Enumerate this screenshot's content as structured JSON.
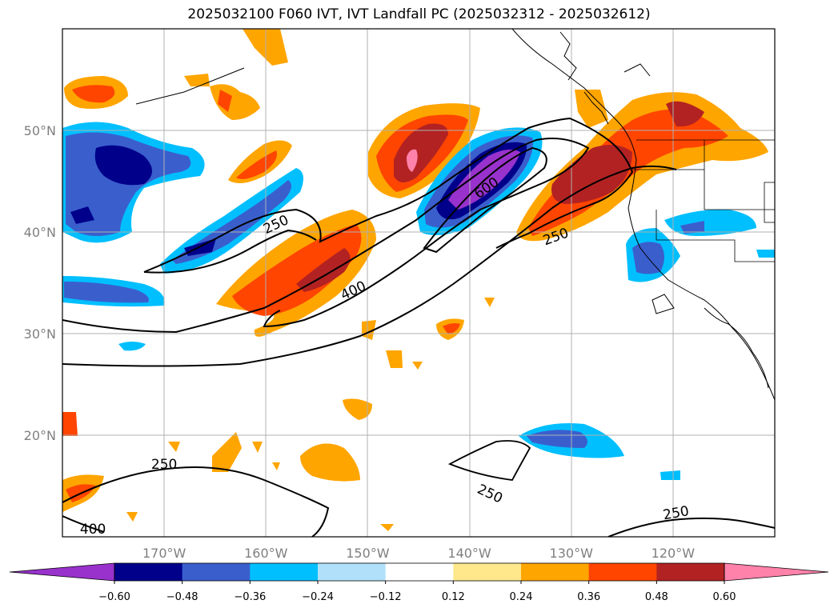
{
  "title": "2025032100 F060 IVT, IVT Landfall PC (2025032312 - 2025032612)",
  "map": {
    "lon_range": [
      180,
      110
    ],
    "lat_range": [
      10,
      60
    ],
    "lon_ticks": [
      {
        "value": 170,
        "label": "170°W"
      },
      {
        "value": 160,
        "label": "160°W"
      },
      {
        "value": 150,
        "label": "150°W"
      },
      {
        "value": 140,
        "label": "140°W"
      },
      {
        "value": 130,
        "label": "130°W"
      },
      {
        "value": 120,
        "label": "120°W"
      }
    ],
    "lat_ticks": [
      {
        "value": 20,
        "label": "20°N"
      },
      {
        "value": 30,
        "label": "30°N"
      },
      {
        "value": 40,
        "label": "40°N"
      },
      {
        "value": 50,
        "label": "50°N"
      }
    ],
    "grid": true,
    "contour_labels": [
      {
        "text": "250",
        "lon": 159,
        "lat": 40.7
      },
      {
        "text": "400",
        "lon": 151.4,
        "lat": 34.2
      },
      {
        "text": "600",
        "lon": 138.3,
        "lat": 44.3
      },
      {
        "text": "250",
        "lon": 131.5,
        "lat": 39.5
      },
      {
        "text": "250",
        "lon": 170,
        "lat": 17.1
      },
      {
        "text": "250",
        "lon": 138,
        "lat": 14.2
      },
      {
        "text": "400",
        "lon": 177,
        "lat": 10.7
      },
      {
        "text": "250",
        "lon": 119.7,
        "lat": 12.3
      }
    ]
  },
  "colorbar": {
    "colors": [
      "#9932cc",
      "#00008b",
      "#3a5fcd",
      "#00bfff",
      "#b0e0fa",
      "#ffffff",
      "#ffe88c",
      "#ffa500",
      "#ff4500",
      "#b22222",
      "#ff82ab"
    ],
    "ticks": [
      "−0.60",
      "−0.48",
      "−0.36",
      "−0.24",
      "−0.12",
      "0.12",
      "0.24",
      "0.36",
      "0.48",
      "0.60"
    ]
  }
}
